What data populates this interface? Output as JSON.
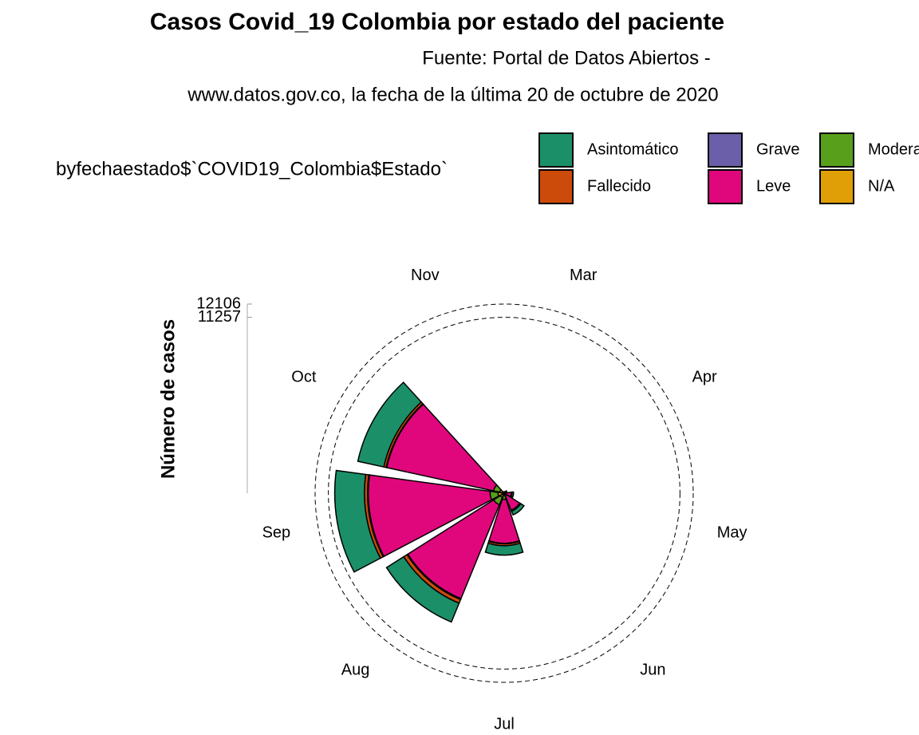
{
  "chart_data": {
    "type": "polar-stacked-bar",
    "title": "Casos Covid_19 Colombia por estado del paciente",
    "subtitle": [
      "Fuente: Portal de Datos Abiertos -",
      "www.datos.gov.co, la fecha de la última 20 de octubre de 2020"
    ],
    "legend_title": "byfechaestado$`COVID19_Colombia$Estado`",
    "y_label": "Número de casos",
    "categories": [
      "Mar",
      "Apr",
      "May",
      "Jun",
      "Jul",
      "Aug",
      "Sep",
      "Oct",
      "Nov"
    ],
    "series": [
      {
        "name": "Asintomático",
        "color": "#1b9068",
        "values": [
          20,
          40,
          100,
          250,
          600,
          1300,
          1900,
          1700,
          0
        ]
      },
      {
        "name": "Fallecido",
        "color": "#cc4a0a",
        "values": [
          5,
          10,
          20,
          50,
          120,
          250,
          200,
          150,
          0
        ]
      },
      {
        "name": "Grave",
        "color": "#6a5fa8",
        "values": [
          2,
          4,
          8,
          20,
          40,
          60,
          50,
          40,
          0
        ]
      },
      {
        "name": "Leve",
        "color": "#e0077d",
        "values": [
          60,
          120,
          400,
          1000,
          2800,
          6500,
          7800,
          7000,
          0
        ]
      },
      {
        "name": "Moderado",
        "color": "#58a01c",
        "values": [
          10,
          20,
          60,
          150,
          300,
          500,
          500,
          400,
          0
        ]
      },
      {
        "name": "N/A",
        "color": "#e09f06",
        "values": [
          5,
          5,
          10,
          30,
          100,
          300,
          400,
          300,
          0
        ]
      }
    ],
    "ylim": [
      0,
      12106
    ],
    "yticks": [
      11257,
      12106
    ],
    "grid": true,
    "label_color": "#8a18d0"
  }
}
